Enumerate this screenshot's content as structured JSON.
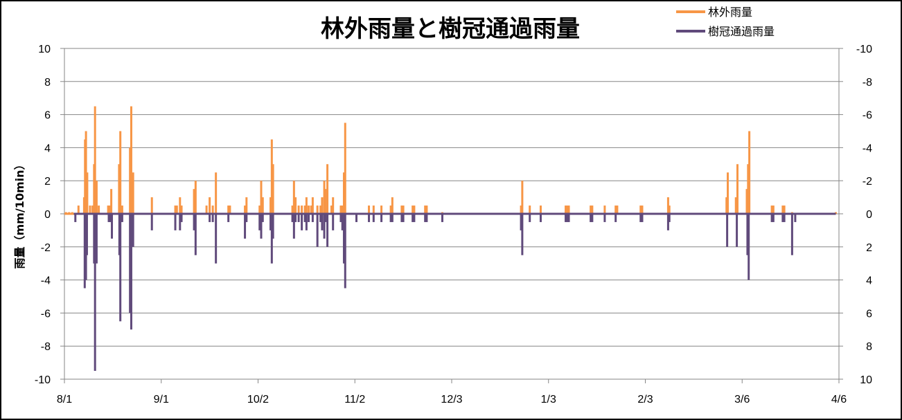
{
  "chart_data": {
    "type": "bar",
    "title": "林外雨量と樹冠通過雨量",
    "ylabel": "雨量（mm/10min）",
    "ylim": [
      -10,
      10
    ],
    "yticks_left": [
      "10",
      "8",
      "6",
      "4",
      "2",
      "0",
      "-2",
      "-4",
      "-6",
      "-8",
      "-10"
    ],
    "yticks_right": [
      "-10",
      "-8",
      "-6",
      "-4",
      "-2",
      "0",
      "2",
      "4",
      "6",
      "8",
      "10"
    ],
    "xlim_days": [
      0,
      248
    ],
    "xticks": [
      {
        "day": 0,
        "label": "8/1"
      },
      {
        "day": 31,
        "label": "9/1"
      },
      {
        "day": 62,
        "label": "10/2"
      },
      {
        "day": 93,
        "label": "11/2"
      },
      {
        "day": 124,
        "label": "12/3"
      },
      {
        "day": 155,
        "label": "1/3"
      },
      {
        "day": 186,
        "label": "2/3"
      },
      {
        "day": 217,
        "label": "3/6"
      },
      {
        "day": 248,
        "label": "4/6"
      }
    ],
    "grid": true,
    "legend_position": "top-right",
    "colors": {
      "open": "#f79646",
      "through": "#604a7b"
    },
    "series": [
      {
        "name": "林外雨量",
        "points": [
          [
            0.5,
            0.1
          ],
          [
            1.5,
            0.1
          ],
          [
            2.5,
            0.1
          ],
          [
            4.5,
            0.5
          ],
          [
            6.3,
            1.0
          ],
          [
            6.6,
            4.5
          ],
          [
            6.9,
            5.0
          ],
          [
            7.3,
            2.5
          ],
          [
            8.2,
            0.5
          ],
          [
            9.0,
            0.5
          ],
          [
            9.5,
            3.0
          ],
          [
            9.8,
            6.5
          ],
          [
            10.3,
            2.0
          ],
          [
            11.0,
            0.5
          ],
          [
            14.0,
            0.5
          ],
          [
            14.5,
            0.5
          ],
          [
            15.0,
            1.5
          ],
          [
            17.5,
            3.0
          ],
          [
            17.9,
            5.0
          ],
          [
            18.5,
            0.5
          ],
          [
            21.0,
            4.0
          ],
          [
            21.4,
            6.5
          ],
          [
            22.0,
            2.5
          ],
          [
            28.0,
            1.0
          ],
          [
            35.5,
            0.5
          ],
          [
            36.0,
            0.5
          ],
          [
            37.0,
            1.0
          ],
          [
            37.5,
            0.5
          ],
          [
            41.5,
            1.5
          ],
          [
            42.0,
            2.0
          ],
          [
            45.5,
            0.5
          ],
          [
            46.5,
            1.0
          ],
          [
            47.5,
            0.5
          ],
          [
            48.5,
            2.5
          ],
          [
            52.5,
            0.5
          ],
          [
            53.0,
            0.5
          ],
          [
            57.8,
            0.5
          ],
          [
            58.3,
            1.0
          ],
          [
            62.5,
            0.5
          ],
          [
            63.0,
            2.0
          ],
          [
            63.5,
            1.0
          ],
          [
            66.0,
            1.0
          ],
          [
            66.4,
            4.5
          ],
          [
            66.8,
            3.0
          ],
          [
            73.0,
            0.5
          ],
          [
            73.5,
            2.0
          ],
          [
            74.0,
            1.0
          ],
          [
            75.0,
            0.5
          ],
          [
            76.0,
            0.5
          ],
          [
            77.0,
            0.5
          ],
          [
            77.5,
            1.0
          ],
          [
            78.2,
            0.5
          ],
          [
            79.0,
            0.5
          ],
          [
            79.5,
            1.0
          ],
          [
            81.0,
            0.5
          ],
          [
            82.0,
            0.5
          ],
          [
            82.5,
            1.0
          ],
          [
            83.2,
            2.0
          ],
          [
            83.6,
            1.5
          ],
          [
            84.2,
            3.0
          ],
          [
            85.5,
            0.5
          ],
          [
            86.0,
            1.0
          ],
          [
            88.5,
            0.5
          ],
          [
            89.0,
            0.5
          ],
          [
            89.5,
            2.5
          ],
          [
            89.9,
            5.5
          ],
          [
            97.5,
            0.5
          ],
          [
            99.0,
            0.5
          ],
          [
            101.5,
            0.5
          ],
          [
            104.5,
            0.5
          ],
          [
            105.0,
            1.0
          ],
          [
            108.0,
            0.5
          ],
          [
            108.5,
            0.5
          ],
          [
            111.5,
            0.5
          ],
          [
            112.0,
            0.5
          ],
          [
            115.5,
            0.5
          ],
          [
            116.0,
            0.5
          ],
          [
            121.0,
            0.1
          ],
          [
            146.2,
            0.5
          ],
          [
            146.6,
            2.0
          ],
          [
            149.0,
            0.5
          ],
          [
            152.5,
            0.5
          ],
          [
            160.5,
            0.5
          ],
          [
            161.0,
            0.5
          ],
          [
            161.5,
            0.5
          ],
          [
            168.5,
            0.5
          ],
          [
            169.0,
            0.5
          ],
          [
            173.0,
            0.5
          ],
          [
            176.5,
            0.5
          ],
          [
            177.0,
            0.5
          ],
          [
            184.5,
            0.5
          ],
          [
            185.0,
            0.5
          ],
          [
            193.3,
            1.0
          ],
          [
            193.7,
            0.5
          ],
          [
            212.0,
            1.0
          ],
          [
            212.4,
            2.5
          ],
          [
            215.0,
            1.0
          ],
          [
            215.5,
            3.0
          ],
          [
            218.5,
            1.5
          ],
          [
            218.9,
            3.0
          ],
          [
            219.3,
            5.0
          ],
          [
            226.5,
            0.5
          ],
          [
            227.0,
            0.5
          ],
          [
            230.0,
            0.5
          ],
          [
            230.5,
            0.5
          ],
          [
            233.0,
            0.1
          ],
          [
            247.0,
            0.1
          ]
        ]
      },
      {
        "name": "樹冠通過雨量",
        "points": [
          [
            3.5,
            -0.5
          ],
          [
            6.5,
            -4.5
          ],
          [
            6.9,
            -4.0
          ],
          [
            7.2,
            -2.5
          ],
          [
            9.5,
            -3.0
          ],
          [
            9.8,
            -9.5
          ],
          [
            10.3,
            -3.0
          ],
          [
            14.2,
            -0.5
          ],
          [
            14.7,
            -0.5
          ],
          [
            15.2,
            -1.5
          ],
          [
            17.6,
            -2.5
          ],
          [
            17.9,
            -6.5
          ],
          [
            18.5,
            -0.5
          ],
          [
            21.0,
            -6.0
          ],
          [
            21.4,
            -7.0
          ],
          [
            22.0,
            -2.0
          ],
          [
            28.0,
            -1.0
          ],
          [
            35.5,
            -1.0
          ],
          [
            37.0,
            -1.0
          ],
          [
            37.5,
            -0.5
          ],
          [
            41.5,
            -1.0
          ],
          [
            42.0,
            -2.5
          ],
          [
            46.5,
            -0.5
          ],
          [
            47.5,
            -0.5
          ],
          [
            48.5,
            -3.0
          ],
          [
            52.5,
            -0.5
          ],
          [
            57.8,
            -1.5
          ],
          [
            58.3,
            -0.5
          ],
          [
            62.5,
            -1.0
          ],
          [
            63.0,
            -1.5
          ],
          [
            63.5,
            -0.5
          ],
          [
            66.0,
            -1.0
          ],
          [
            66.4,
            -3.0
          ],
          [
            66.8,
            -1.5
          ],
          [
            73.0,
            -0.5
          ],
          [
            73.5,
            -1.5
          ],
          [
            74.0,
            -0.5
          ],
          [
            75.0,
            -0.5
          ],
          [
            76.0,
            -1.0
          ],
          [
            77.0,
            -0.5
          ],
          [
            77.5,
            -1.0
          ],
          [
            78.2,
            -0.5
          ],
          [
            79.5,
            -0.5
          ],
          [
            81.0,
            -2.0
          ],
          [
            82.0,
            -0.5
          ],
          [
            82.5,
            -1.0
          ],
          [
            83.2,
            -1.5
          ],
          [
            83.6,
            -0.5
          ],
          [
            84.2,
            -2.0
          ],
          [
            86.0,
            -1.0
          ],
          [
            88.5,
            -0.5
          ],
          [
            89.0,
            -1.0
          ],
          [
            89.5,
            -3.0
          ],
          [
            89.9,
            -4.5
          ],
          [
            93.5,
            -0.5
          ],
          [
            97.5,
            -0.5
          ],
          [
            99.0,
            -0.5
          ],
          [
            101.5,
            -0.5
          ],
          [
            104.5,
            -0.5
          ],
          [
            105.0,
            -0.5
          ],
          [
            108.0,
            -0.5
          ],
          [
            108.5,
            -0.5
          ],
          [
            111.5,
            -0.5
          ],
          [
            112.0,
            -0.5
          ],
          [
            115.5,
            -0.5
          ],
          [
            116.0,
            -0.5
          ],
          [
            121.0,
            -0.5
          ],
          [
            146.2,
            -1.0
          ],
          [
            146.6,
            -2.5
          ],
          [
            149.0,
            -0.5
          ],
          [
            152.5,
            -0.5
          ],
          [
            160.5,
            -0.5
          ],
          [
            161.0,
            -0.5
          ],
          [
            161.5,
            -0.5
          ],
          [
            168.5,
            -0.5
          ],
          [
            169.0,
            -0.5
          ],
          [
            173.0,
            -0.5
          ],
          [
            176.5,
            -0.5
          ],
          [
            184.5,
            -0.5
          ],
          [
            185.0,
            -0.5
          ],
          [
            193.3,
            -1.0
          ],
          [
            193.7,
            -0.5
          ],
          [
            212.2,
            -2.0
          ],
          [
            215.3,
            -2.0
          ],
          [
            218.7,
            -2.5
          ],
          [
            219.1,
            -4.0
          ],
          [
            226.5,
            -0.5
          ],
          [
            227.0,
            -0.5
          ],
          [
            230.0,
            -0.5
          ],
          [
            230.5,
            -0.5
          ],
          [
            233.0,
            -2.5
          ],
          [
            234.0,
            -0.5
          ]
        ]
      }
    ]
  }
}
